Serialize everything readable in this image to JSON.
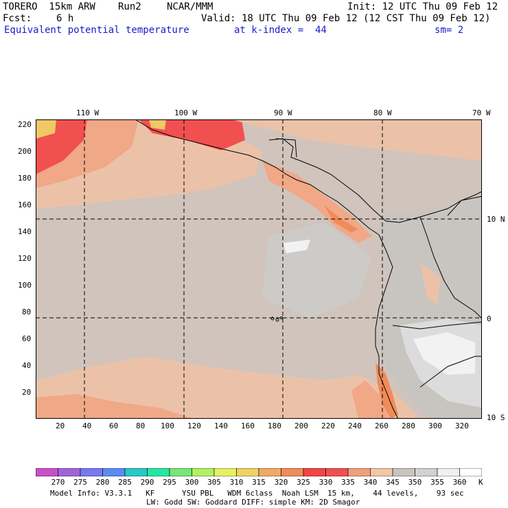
{
  "header": {
    "model": "TORERO  15km ARW",
    "run": "Run2",
    "org": "NCAR/MMM",
    "init": "Init: 12 UTC Thu 09 Feb 12",
    "fcst_label": "Fcst:",
    "fcst_value": "6 h",
    "valid": "Valid: 18 UTC Thu 09 Feb 12 (12 CST Thu 09 Feb 12)",
    "field": "Equivalent potential temperature",
    "level": "at k-index =  44",
    "smoothing": "sm= 2"
  },
  "map": {
    "top_longitudes": [
      "110 W",
      "100 W",
      "90 W",
      "80 W",
      "70 W"
    ],
    "right_latitudes": [
      "10 N",
      "0",
      "10 S"
    ],
    "y_grid_ticks": [
      "220",
      "200",
      "180",
      "160",
      "140",
      "120",
      "100",
      "80",
      "60",
      "40",
      "20"
    ],
    "x_grid_ticks": [
      "20",
      "40",
      "60",
      "80",
      "100",
      "120",
      "140",
      "160",
      "180",
      "200",
      "220",
      "240",
      "260",
      "280",
      "300",
      "320"
    ],
    "colors": {
      "land_border": "#000000",
      "grid_line": "#000000"
    }
  },
  "colorbar": {
    "labels": [
      "270",
      "275",
      "280",
      "285",
      "290",
      "295",
      "300",
      "305",
      "310",
      "315",
      "320",
      "325",
      "330",
      "335",
      "340",
      "345",
      "350",
      "355",
      "360"
    ],
    "unit": "K",
    "colors": [
      "#c850c8",
      "#a064d8",
      "#7878f0",
      "#5a8cf0",
      "#28c8c8",
      "#28e6a0",
      "#78e678",
      "#b4f064",
      "#e6f064",
      "#f0d264",
      "#f0aa64",
      "#f08c5a",
      "#f04646",
      "#f05050",
      "#f0a078",
      "#f0c8a8",
      "#c8c4c0",
      "#d2d2d2",
      "#f0f0f0",
      "#ffffff"
    ]
  },
  "footer": {
    "line1": "Model Info: V3.3.1   KF      YSU PBL   WDM 6class  Noah LSM  15 km,    44 levels,    93 sec",
    "line2": "LW: Godd SW: Goddard DIFF: simple KM: 2D Smagor"
  }
}
